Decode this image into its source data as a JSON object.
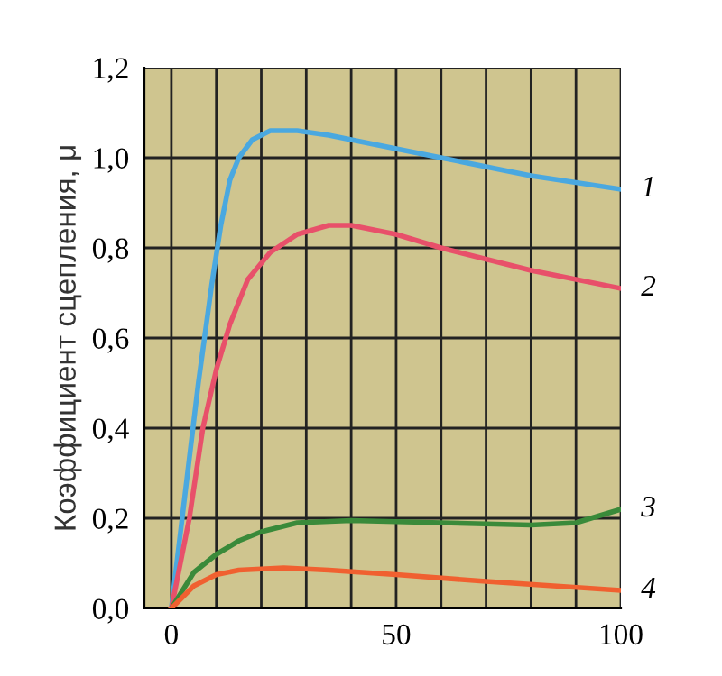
{
  "chart_data": {
    "type": "line",
    "ylabel": "Коэффициент сцепления, μ",
    "xlim": [
      -6,
      100
    ],
    "ylim": [
      0,
      1.2
    ],
    "xticks": [
      0,
      {
        "value": 10,
        "label": null
      },
      {
        "value": 20,
        "label": null
      },
      {
        "value": 30,
        "label": null
      },
      {
        "value": 40,
        "label": null
      },
      50,
      {
        "value": 60,
        "label": null
      },
      {
        "value": 70,
        "label": null
      },
      {
        "value": 80,
        "label": null
      },
      {
        "value": 90,
        "label": null
      },
      100
    ],
    "yticks": [
      {
        "value": 0,
        "label": "0,0"
      },
      {
        "value": 0.2,
        "label": "0,2"
      },
      {
        "value": 0.4,
        "label": "0,4"
      },
      {
        "value": 0.6,
        "label": "0,6"
      },
      {
        "value": 0.8,
        "label": "0,8"
      },
      {
        "value": 1.0,
        "label": "1,0"
      },
      {
        "value": 1.2,
        "label": "1,2"
      }
    ],
    "grid": true,
    "legend": false,
    "marker": "none",
    "line_style": "solid",
    "series": [
      {
        "name": "1",
        "color": "#4aa8e0",
        "x": [
          0,
          3,
          6,
          9,
          11,
          13,
          15,
          18,
          22,
          28,
          35,
          45,
          60,
          80,
          100
        ],
        "values": [
          0,
          0.25,
          0.5,
          0.72,
          0.85,
          0.95,
          1.0,
          1.04,
          1.06,
          1.06,
          1.05,
          1.03,
          1.0,
          0.96,
          0.93
        ]
      },
      {
        "name": "2",
        "color": "#e8506a",
        "x": [
          0,
          4,
          7,
          10,
          13,
          17,
          22,
          28,
          35,
          40,
          50,
          60,
          80,
          100
        ],
        "values": [
          0,
          0.2,
          0.4,
          0.53,
          0.63,
          0.73,
          0.79,
          0.83,
          0.85,
          0.85,
          0.83,
          0.8,
          0.75,
          0.71
        ]
      },
      {
        "name": "3",
        "color": "#3a8a3a",
        "x": [
          0,
          5,
          10,
          15,
          20,
          28,
          40,
          60,
          80,
          90,
          100
        ],
        "values": [
          0,
          0.08,
          0.12,
          0.15,
          0.17,
          0.19,
          0.195,
          0.19,
          0.185,
          0.19,
          0.22
        ]
      },
      {
        "name": "4",
        "color": "#f06030",
        "x": [
          0,
          5,
          10,
          15,
          25,
          35,
          50,
          70,
          100
        ],
        "values": [
          0,
          0.05,
          0.075,
          0.085,
          0.09,
          0.085,
          0.075,
          0.06,
          0.04
        ]
      }
    ]
  }
}
